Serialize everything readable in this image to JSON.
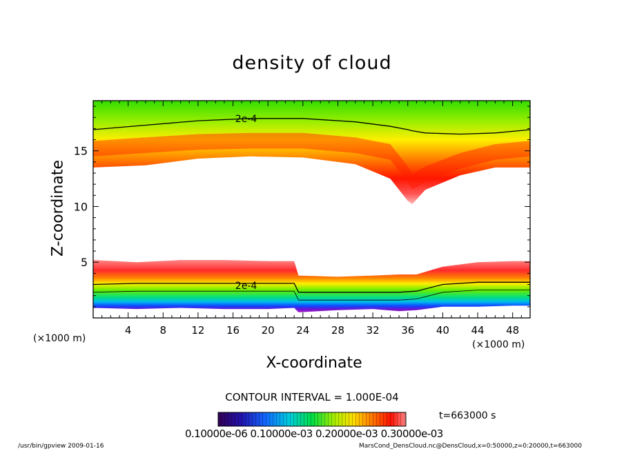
{
  "chart_data": {
    "type": "heatmap",
    "title": "density of cloud",
    "xlabel": "X-coordinate",
    "ylabel": "Z-coordinate",
    "x_unit_left": "(×1000 m)",
    "x_unit_right": "(×1000 m)",
    "xlim": [
      0,
      50
    ],
    "ylim": [
      0,
      19.5
    ],
    "x_ticks": [
      4,
      8,
      12,
      16,
      20,
      24,
      28,
      32,
      36,
      40,
      44,
      48
    ],
    "y_ticks": [
      5,
      10,
      15
    ],
    "contour_labels": [
      {
        "text": "2e-4",
        "x": 17.5,
        "y": 17.9
      },
      {
        "text": "2e-4",
        "x": 17.5,
        "y": 2.9
      }
    ],
    "contour_interval": "CONTOUR INTERVAL = 1.000E-04",
    "time": "t=663000 s",
    "colorbar_labels": "0.10000e-06 0.10000e-03 0.20000e-03 0.30000e-03",
    "colorbar_range": [
      1e-07,
      0.00035
    ],
    "upper_cloud": {
      "x": [
        0,
        6,
        12,
        18,
        24,
        30,
        34,
        36,
        36.5,
        38,
        42,
        46,
        50
      ],
      "bottom": [
        13.5,
        13.7,
        14.3,
        14.5,
        14.4,
        13.8,
        12.5,
        10.5,
        10.2,
        11.5,
        12.8,
        13.5,
        13.5
      ],
      "core": [
        15.3,
        15.6,
        15.9,
        16.0,
        16.0,
        15.6,
        15.0,
        13.0,
        12.3,
        13.0,
        14.2,
        15.0,
        15.3
      ],
      "top_contour": [
        16.9,
        17.3,
        17.7,
        17.9,
        17.9,
        17.6,
        17.2,
        16.9,
        16.8,
        16.6,
        16.5,
        16.6,
        16.9
      ]
    },
    "lower_cloud": {
      "x": [
        0,
        5,
        10,
        15,
        20,
        23,
        23.5,
        28,
        32,
        35,
        37,
        40,
        44,
        48,
        50
      ],
      "top": [
        5.2,
        5.0,
        5.2,
        5.2,
        5.1,
        5.1,
        3.8,
        3.7,
        3.8,
        3.9,
        3.9,
        4.6,
        5.0,
        5.1,
        5.1
      ],
      "contour": [
        3.0,
        3.1,
        3.1,
        3.1,
        3.1,
        3.1,
        2.3,
        2.3,
        2.3,
        2.3,
        2.4,
        3.0,
        3.2,
        3.2,
        3.2
      ],
      "bottom": [
        0.9,
        0.8,
        0.9,
        0.8,
        0.8,
        0.9,
        0.5,
        0.7,
        0.8,
        0.6,
        0.7,
        1.0,
        1.0,
        1.1,
        1.1
      ]
    }
  },
  "footer_left": "/usr/bin/gpview  2009-01-16",
  "footer_right": "MarsCond_DensCloud.nc@DensCloud,x=0:50000,z=0:20000,t=663000"
}
